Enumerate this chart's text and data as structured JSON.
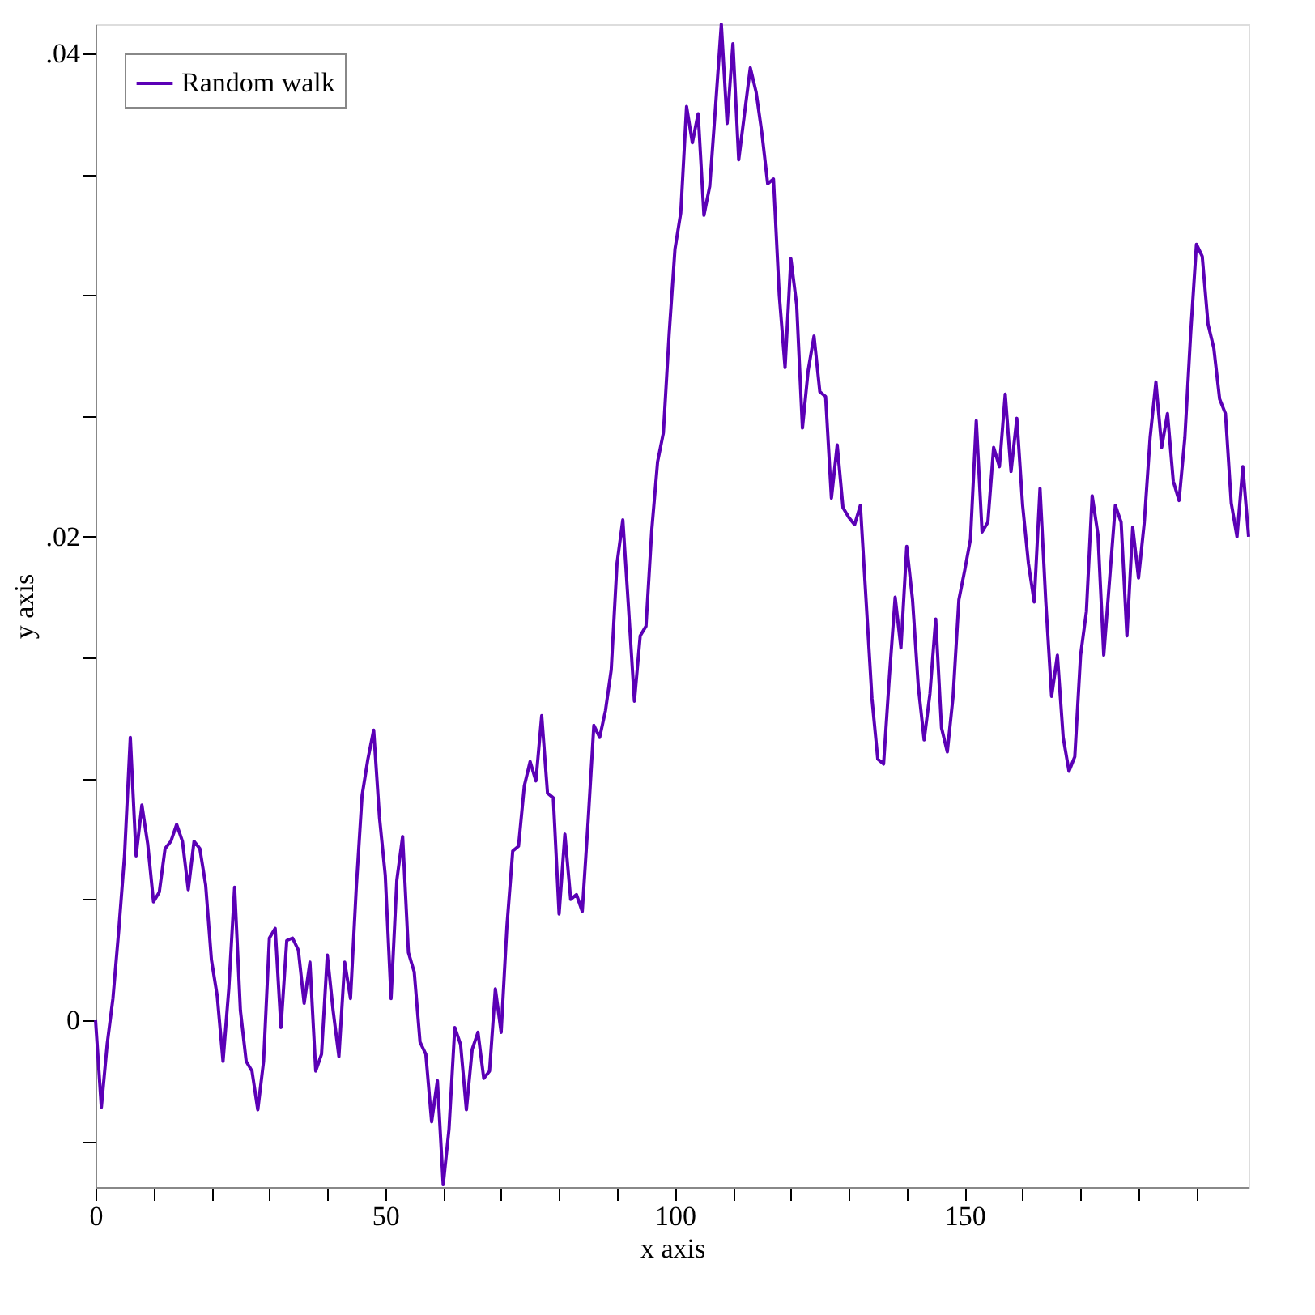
{
  "chart_data": {
    "type": "line",
    "xlabel": "x axis",
    "ylabel": "y axis",
    "xlim": [
      0,
      199
    ],
    "ylim": [
      -0.0069,
      0.0412
    ],
    "xticks": [
      0,
      {
        "value": 10,
        "label": null
      },
      {
        "value": 20,
        "label": null
      },
      {
        "value": 30,
        "label": null
      },
      {
        "value": 40,
        "label": null
      },
      50,
      {
        "value": 60,
        "label": null
      },
      {
        "value": 70,
        "label": null
      },
      {
        "value": 80,
        "label": null
      },
      {
        "value": 90,
        "label": null
      },
      100,
      {
        "value": 110,
        "label": null
      },
      {
        "value": 120,
        "label": null
      },
      {
        "value": 130,
        "label": null
      },
      {
        "value": 140,
        "label": null
      },
      150,
      {
        "value": 160,
        "label": null
      },
      {
        "value": 170,
        "label": null
      },
      {
        "value": 180,
        "label": null
      },
      {
        "value": 190,
        "label": null
      }
    ],
    "yticks": [
      {
        "value": -0.005,
        "label": null
      },
      0,
      {
        "value": 0.005,
        "label": null
      },
      {
        "value": 0.01,
        "label": null
      },
      {
        "value": 0.015,
        "label": null
      },
      {
        "value": 0.02,
        "label": ".02"
      },
      {
        "value": 0.025,
        "label": null
      },
      {
        "value": 0.03,
        "label": null
      },
      {
        "value": 0.035,
        "label": null
      },
      {
        "value": 0.04,
        "label": ".04"
      }
    ],
    "x": [
      0,
      1,
      2,
      3,
      4,
      5,
      6,
      7,
      8,
      9,
      10,
      11,
      12,
      13,
      14,
      15,
      16,
      17,
      18,
      19,
      20,
      21,
      22,
      23,
      24,
      25,
      26,
      27,
      28,
      29,
      30,
      31,
      32,
      33,
      34,
      35,
      36,
      37,
      38,
      39,
      40,
      41,
      42,
      43,
      44,
      45,
      46,
      47,
      48,
      49,
      50,
      51,
      52,
      53,
      54,
      55,
      56,
      57,
      58,
      59,
      60,
      61,
      62,
      63,
      64,
      65,
      66,
      67,
      68,
      69,
      70,
      71,
      72,
      73,
      74,
      75,
      76,
      77,
      78,
      79,
      80,
      81,
      82,
      83,
      84,
      85,
      86,
      87,
      88,
      89,
      90,
      91,
      92,
      93,
      94,
      95,
      96,
      97,
      98,
      99,
      100,
      101,
      102,
      103,
      104,
      105,
      106,
      107,
      108,
      109,
      110,
      111,
      112,
      113,
      114,
      115,
      116,
      117,
      118,
      119,
      120,
      121,
      122,
      123,
      124,
      125,
      126,
      127,
      128,
      129,
      130,
      131,
      132,
      133,
      134,
      135,
      136,
      137,
      138,
      139,
      140,
      141,
      142,
      143,
      144,
      145,
      146,
      147,
      148,
      149,
      150,
      151,
      152,
      153,
      154,
      155,
      156,
      157,
      158,
      159,
      160,
      161,
      162,
      163,
      164,
      165,
      166,
      167,
      168,
      169,
      170,
      171,
      172,
      173,
      174,
      175,
      176,
      177,
      178,
      179,
      180,
      181,
      182,
      183,
      184,
      185,
      186,
      187,
      188,
      189,
      190,
      191,
      192,
      193,
      194,
      195,
      196,
      197,
      198,
      199
    ],
    "grid": false,
    "legend": "top left",
    "marker": "none",
    "line_style": "solid",
    "series": [
      {
        "name": "Random walk",
        "color": "#5b00b6",
        "values": [
          0.0,
          -0.0036,
          -0.001,
          0.0009,
          0.0037,
          0.0068,
          0.0117,
          0.0068,
          0.0089,
          0.0073,
          0.0049,
          0.0053,
          0.0071,
          0.0074,
          0.0081,
          0.0074,
          0.0054,
          0.0074,
          0.0071,
          0.0056,
          0.0025,
          0.001,
          -0.0017,
          0.0013,
          0.0055,
          0.0004,
          -0.0017,
          -0.0021,
          -0.0037,
          -0.0017,
          0.0034,
          0.0038,
          -0.0003,
          0.0033,
          0.0034,
          0.0029,
          0.0007,
          0.0024,
          -0.0021,
          -0.0014,
          0.0027,
          0.0004,
          -0.0015,
          0.0024,
          0.0009,
          0.0055,
          0.0093,
          0.0108,
          0.012,
          0.0084,
          0.006,
          0.0009,
          0.0058,
          0.0076,
          0.0028,
          0.002,
          -0.0009,
          -0.0014,
          -0.0042,
          -0.0025,
          -0.0068,
          -0.0045,
          -0.0003,
          -0.001,
          -0.0037,
          -0.0012,
          -0.0005,
          -0.0024,
          -0.0021,
          0.0013,
          -0.0005,
          0.0039,
          0.007,
          0.0072,
          0.0097,
          0.0107,
          0.0099,
          0.0126,
          0.0094,
          0.0092,
          0.0044,
          0.0077,
          0.005,
          0.0052,
          0.0045,
          0.0082,
          0.0122,
          0.0117,
          0.0128,
          0.0145,
          0.0189,
          0.0207,
          0.017,
          0.0132,
          0.0159,
          0.0163,
          0.0203,
          0.0231,
          0.0243,
          0.0284,
          0.0319,
          0.0334,
          0.0378,
          0.0363,
          0.0375,
          0.0333,
          0.0345,
          0.0378,
          0.0412,
          0.0371,
          0.0404,
          0.0356,
          0.0375,
          0.0394,
          0.0384,
          0.0367,
          0.0346,
          0.0348,
          0.03,
          0.027,
          0.0315,
          0.0296,
          0.0245,
          0.0269,
          0.0283,
          0.026,
          0.0258,
          0.0216,
          0.0238,
          0.0212,
          0.0208,
          0.0205,
          0.0213,
          0.0173,
          0.0133,
          0.0108,
          0.0106,
          0.0142,
          0.0175,
          0.0154,
          0.0196,
          0.0174,
          0.0138,
          0.0116,
          0.0135,
          0.0166,
          0.0121,
          0.0111,
          0.0134,
          0.0174,
          0.0186,
          0.0199,
          0.0248,
          0.0202,
          0.0206,
          0.0237,
          0.0229,
          0.0259,
          0.0227,
          0.0249,
          0.0213,
          0.0189,
          0.0173,
          0.022,
          0.0173,
          0.0134,
          0.0151,
          0.0117,
          0.0103,
          0.0109,
          0.0151,
          0.0169,
          0.0217,
          0.0201,
          0.0151,
          0.0182,
          0.0213,
          0.0206,
          0.0159,
          0.0204,
          0.0183,
          0.0206,
          0.0241,
          0.0264,
          0.0237,
          0.0251,
          0.0223,
          0.0215,
          0.0241,
          0.0284,
          0.0321,
          0.0316,
          0.0288,
          0.0278,
          0.0257,
          0.0251,
          0.0214,
          0.02,
          0.0229,
          0.02
        ]
      }
    ]
  }
}
